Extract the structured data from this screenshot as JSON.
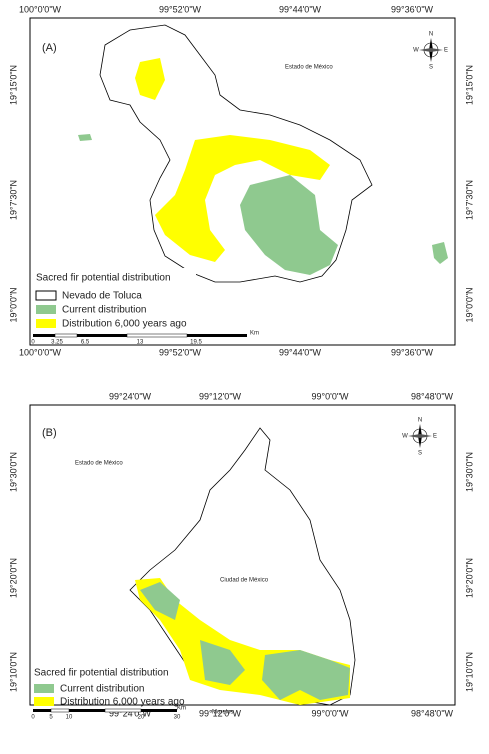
{
  "panels": [
    {
      "label": "(A)",
      "top_ticks": [
        "100°0'0\"W",
        "99°52'0\"W",
        "99°44'0\"W",
        "99°36'0\"W"
      ],
      "bottom_ticks": [
        "100°0'0\"W",
        "99°52'0\"W",
        "99°44'0\"W",
        "99°36'0\"W"
      ],
      "left_ticks": [
        "19°15'0\"N",
        "19°7'30\"N",
        "19°0'0\"N"
      ],
      "right_ticks": [
        "19°15'0\"N",
        "19°7'30\"N",
        "19°0'0\"N"
      ],
      "places": [
        "Estado de México"
      ],
      "legend": {
        "title": "Sacred fir potential distribution",
        "items": [
          "Nevado de Toluca",
          "Current distribution",
          "Distribution 6,000 years ago"
        ]
      },
      "scale": {
        "ticks": [
          "0",
          "3.25",
          "6.5",
          "13",
          "19.5"
        ],
        "unit": "Km"
      },
      "compass": {
        "n": "N",
        "s": "S",
        "e": "E",
        "w": "W"
      }
    },
    {
      "label": "(B)",
      "top_ticks": [
        "99°24'0\"W",
        "99°12'0\"W",
        "99°0'0\"W",
        "98°48'0\"W"
      ],
      "bottom_ticks": [
        "99°24'0\"W",
        "99°12'0\"W",
        "99°0'0\"W",
        "98°48'0\"W"
      ],
      "left_ticks": [
        "19°30'0\"N",
        "19°20'0\"N",
        "19°10'0\"N"
      ],
      "right_ticks": [
        "19°30'0\"N",
        "19°20'0\"N",
        "19°10'0\"N"
      ],
      "places": [
        "Estado de México",
        "Ciudad de México",
        "Morelos"
      ],
      "legend": {
        "title": "Sacred fir potential distribution",
        "items": [
          "Current distribution",
          "Distribution 6,000 years ago"
        ]
      },
      "scale": {
        "ticks": [
          "0",
          "5",
          "10",
          "20",
          "30"
        ],
        "unit": "Km"
      },
      "compass": {
        "n": "N",
        "s": "S",
        "e": "E",
        "w": "W"
      }
    }
  ]
}
